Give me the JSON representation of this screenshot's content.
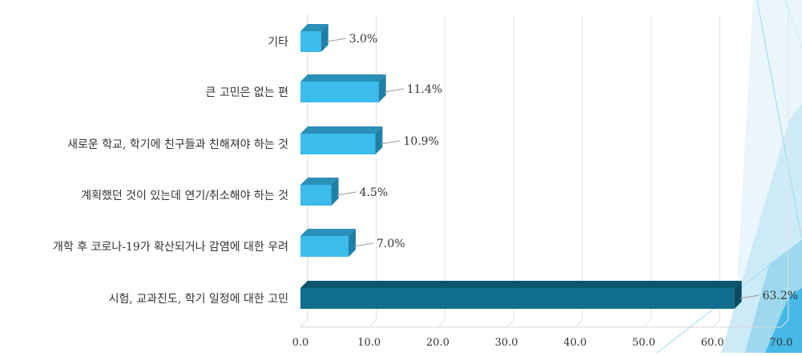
{
  "chart_data": {
    "type": "bar",
    "orientation": "horizontal",
    "categories": [
      "기타",
      "큰 고민은 없는 편",
      "새로운 학교, 학기에 친구들과 친해져야 하는 것",
      "계획했던 것이 있는데 연기/취소해야 하는 것",
      "개학 후 코로나-19가 확산되거나 감염에 대한 우려",
      "시험, 교과진도, 학기 일정에 대한 고민"
    ],
    "values": [
      3.0,
      11.4,
      10.9,
      4.5,
      7.0,
      63.2
    ],
    "value_labels": [
      "3.0%",
      "11.4%",
      "10.9%",
      "4.5%",
      "7.0%",
      "63.2%"
    ],
    "highlight_index": 5,
    "xlim": [
      0,
      70
    ],
    "x_ticks": [
      "0.0",
      "10.0",
      "20.0",
      "30.0",
      "40.0",
      "50.0",
      "60.0",
      "70.0"
    ],
    "grid": "vertical",
    "legend": "none",
    "colors": {
      "bar": "#3DBBEA",
      "bar_top": "#2A90B8",
      "bar_side": "#1F7FA6",
      "highlight": "#0F6E8E",
      "highlight_top": "#0A5670",
      "highlight_side": "#094B62",
      "grid": "#E2E2E2",
      "decor": "#9ED8EE"
    }
  }
}
